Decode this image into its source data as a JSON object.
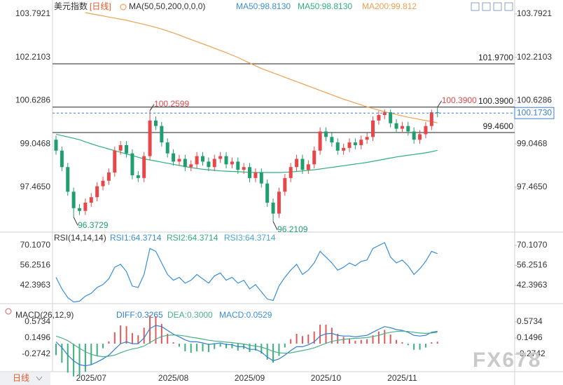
{
  "chart_data": [
    {
      "type": "candlestick",
      "title": "美元指数",
      "period": "[日线]",
      "indicator": "MA(50,50,200,0,0,0)",
      "categories": [
        null,
        null,
        null,
        null,
        null,
        null,
        "2025/07",
        null,
        null,
        null,
        null,
        null,
        null,
        null,
        null,
        null,
        null,
        null,
        null,
        null,
        "2025/08",
        null,
        null,
        null,
        null,
        null,
        null,
        null,
        null,
        null,
        null,
        null,
        null,
        "2025/09",
        null,
        null,
        null,
        null,
        null,
        null,
        null,
        null,
        null,
        null,
        null,
        null,
        "2025/10",
        null,
        null,
        null,
        null,
        null,
        null,
        null,
        null,
        null,
        null,
        null,
        null,
        "2025/11",
        null,
        null,
        null,
        null,
        null,
        null
      ],
      "open": [
        99.2,
        98.8,
        98.2,
        97.3,
        96.7,
        96.6,
        96.9,
        97.1,
        97.5,
        97.7,
        98.0,
        98.8,
        99.0,
        98.7,
        97.9,
        97.8,
        98.6,
        99.9,
        99.7,
        99.1,
        98.7,
        98.4,
        98.5,
        98.2,
        98.3,
        98.6,
        98.4,
        98.2,
        98.5,
        98.6,
        98.3,
        98.4,
        98.1,
        98.2,
        97.8,
        98.0,
        97.6,
        96.9,
        96.5,
        97.3,
        97.8,
        98.2,
        98.5,
        98.1,
        98.3,
        98.8,
        99.5,
        99.3,
        99.1,
        98.8,
        98.9,
        99.1,
        99.0,
        99.2,
        99.3,
        99.9,
        100.1,
        100.2,
        99.8,
        99.6,
        99.7,
        99.5,
        99.2,
        99.4,
        99.7,
        100.2
      ],
      "high": [
        99.35,
        98.95,
        98.35,
        97.45,
        96.85,
        97.05,
        97.25,
        97.65,
        97.85,
        98.15,
        98.95,
        99.15,
        99.15,
        98.85,
        98.05,
        98.75,
        100.2599,
        100.05,
        99.85,
        99.25,
        98.85,
        98.65,
        98.65,
        98.45,
        98.75,
        98.75,
        98.55,
        98.65,
        98.75,
        98.75,
        98.55,
        98.55,
        98.35,
        98.35,
        98.15,
        98.15,
        97.75,
        97.05,
        97.45,
        97.95,
        98.35,
        98.65,
        98.65,
        98.45,
        98.95,
        99.65,
        99.65,
        99.45,
        99.25,
        99.05,
        99.25,
        99.25,
        99.35,
        99.45,
        100.05,
        100.25,
        100.3,
        100.3,
        99.95,
        99.85,
        99.85,
        99.65,
        99.55,
        99.85,
        100.3,
        100.39
      ],
      "low": [
        98.65,
        98.05,
        97.15,
        96.3729,
        96.45,
        96.45,
        96.75,
        96.95,
        97.35,
        97.55,
        97.85,
        98.65,
        98.55,
        97.75,
        97.65,
        97.65,
        98.45,
        99.55,
        98.95,
        98.55,
        98.25,
        98.25,
        98.05,
        98.05,
        98.15,
        98.25,
        98.05,
        98.05,
        98.35,
        98.15,
        98.15,
        97.95,
        97.95,
        97.65,
        97.65,
        97.45,
        96.75,
        96.2109,
        96.35,
        97.15,
        97.65,
        98.05,
        97.95,
        97.95,
        98.15,
        98.65,
        99.15,
        98.95,
        98.65,
        98.65,
        98.75,
        98.85,
        98.85,
        99.05,
        99.15,
        99.75,
        99.95,
        99.65,
        99.45,
        99.45,
        99.35,
        99.05,
        99.05,
        99.25,
        99.55,
        100.02
      ],
      "close": [
        98.8,
        98.2,
        97.3,
        96.7,
        96.6,
        96.9,
        97.1,
        97.5,
        97.7,
        98.0,
        98.8,
        99.0,
        98.7,
        97.9,
        97.8,
        98.6,
        99.9,
        99.7,
        99.1,
        98.7,
        98.4,
        98.5,
        98.2,
        98.3,
        98.6,
        98.4,
        98.2,
        98.5,
        98.6,
        98.3,
        98.4,
        98.1,
        98.2,
        97.8,
        98.0,
        97.6,
        96.9,
        96.5,
        97.3,
        97.8,
        98.2,
        98.5,
        98.1,
        98.3,
        98.8,
        99.5,
        99.3,
        99.1,
        98.8,
        98.9,
        99.1,
        99.0,
        99.2,
        99.3,
        99.9,
        100.1,
        100.2,
        99.8,
        99.6,
        99.7,
        99.5,
        99.2,
        99.4,
        99.7,
        100.2,
        100.173
      ],
      "up_color": "#e8474a",
      "down_color": "#1f9e6e",
      "series": [
        {
          "name": "MA50:98.8130",
          "color": "#3b8fd6"
        },
        {
          "name": "MA50:98.8130",
          "color": "#2fb07a",
          "values": [
            99.4,
            99.35,
            99.3,
            99.25,
            99.2,
            99.12,
            99.05,
            98.98,
            98.92,
            98.86,
            98.8,
            98.74,
            98.68,
            98.62,
            98.56,
            98.5,
            98.46,
            98.42,
            98.38,
            98.34,
            98.3,
            98.26,
            98.22,
            98.18,
            98.15,
            98.12,
            98.1,
            98.08,
            98.06,
            98.05,
            98.04,
            98.03,
            98.02,
            98.01,
            98.0,
            98.0,
            98.0,
            98.0,
            98.0,
            98.01,
            98.02,
            98.04,
            98.06,
            98.08,
            98.1,
            98.13,
            98.16,
            98.19,
            98.22,
            98.25,
            98.28,
            98.31,
            98.34,
            98.37,
            98.41,
            98.45,
            98.49,
            98.53,
            98.57,
            98.6,
            98.63,
            98.66,
            98.69,
            98.72,
            98.76,
            98.813
          ]
        },
        {
          "name": "MA200:99.812",
          "color": "#f0a050",
          "values": [
            null,
            null,
            null,
            null,
            null,
            103.84,
            103.8,
            103.76,
            103.72,
            103.68,
            103.64,
            103.6,
            103.56,
            103.51,
            103.46,
            103.41,
            103.36,
            103.3,
            103.24,
            103.17,
            103.1,
            103.02,
            102.94,
            102.86,
            102.78,
            102.7,
            102.62,
            102.54,
            102.46,
            102.38,
            102.29,
            102.2,
            102.1,
            102.0,
            101.9,
            101.8,
            101.72,
            101.64,
            101.56,
            101.48,
            101.4,
            101.32,
            101.24,
            101.16,
            101.08,
            101.0,
            100.92,
            100.84,
            100.76,
            100.68,
            100.61,
            100.54,
            100.47,
            100.4,
            100.34,
            100.28,
            100.22,
            100.17,
            100.12,
            100.07,
            100.02,
            99.98,
            99.94,
            99.9,
            99.86,
            99.812
          ]
        }
      ],
      "ylim": [
        95.85,
        104.25
      ],
      "yticks": [
        103.7921,
        102.2103,
        100.6286,
        99.0468,
        {
          "value": 97.465,
          "label": "97.4650"
        }
      ],
      "hlines": [
        {
          "value": 101.97,
          "label": "101.9700"
        },
        {
          "value": 100.39,
          "label": "100.3900"
        },
        {
          "value": 99.46,
          "label": "99.4600"
        }
      ],
      "last": {
        "value": 100.173,
        "label": "100.1730",
        "color": "#3a7fd0"
      },
      "annotations": [
        {
          "value": 96.3729,
          "label": "96.3729"
        },
        {
          "value": 100.2599,
          "label": "100.2599"
        },
        {
          "value": 96.2109,
          "label": "96.2109"
        },
        {
          "value": 100.39,
          "label": "100.3900"
        }
      ]
    },
    {
      "type": "line",
      "title": "RSI(14,14,14)",
      "series": [
        {
          "name": "RSI1:64.3714",
          "color": "#3a8fd8",
          "values": [
            48,
            40,
            34,
            31,
            31.5,
            35,
            37,
            41,
            43,
            47,
            55,
            57,
            52,
            42,
            41,
            50,
            68,
            66,
            58,
            50,
            46,
            48,
            44,
            46,
            50,
            47,
            44,
            49,
            51,
            46,
            48,
            44,
            46,
            40,
            43,
            38,
            33,
            32,
            42,
            48,
            53,
            57,
            50,
            53,
            58,
            66,
            62,
            58,
            53,
            55,
            58,
            56,
            59,
            60,
            68,
            70,
            72,
            62,
            58,
            60,
            56,
            50,
            54,
            59,
            66,
            64.3714
          ]
        },
        {
          "name": "RSI2:64.3714",
          "color": "#2fb07a"
        },
        {
          "name": "RSI3:64.3714",
          "color": "#46a7d8"
        }
      ],
      "ylim": [
        30.3,
        78.8
      ],
      "yticks": [
        {
          "value": 70.107,
          "label": "70.1070"
        },
        56.2516,
        42.3963
      ]
    },
    {
      "type": "macd",
      "title": "MACD(26,12,9)",
      "series": [
        {
          "name": "DIFF:0.3265",
          "color": "#2f7fd0",
          "values": [
            0.05,
            -0.1,
            -0.3,
            -0.45,
            -0.55,
            -0.58,
            -0.55,
            -0.48,
            -0.4,
            -0.3,
            -0.15,
            0.0,
            0.05,
            0.0,
            0.0,
            0.15,
            0.4,
            0.48,
            0.45,
            0.35,
            0.25,
            0.18,
            0.1,
            0.05,
            0.05,
            0.02,
            -0.02,
            0.0,
            0.02,
            -0.02,
            -0.03,
            -0.08,
            -0.08,
            -0.15,
            -0.15,
            -0.22,
            -0.35,
            -0.45,
            -0.4,
            -0.3,
            -0.18,
            -0.08,
            -0.08,
            -0.03,
            0.05,
            0.2,
            0.26,
            0.27,
            0.22,
            0.2,
            0.2,
            0.18,
            0.2,
            0.22,
            0.3,
            0.38,
            0.45,
            0.42,
            0.37,
            0.35,
            0.3,
            0.22,
            0.2,
            0.22,
            0.3,
            0.3265
          ]
        },
        {
          "name": "DEA:0.3000",
          "color": "#49b08c",
          "values": [
            0.2,
            0.15,
            0.08,
            -0.02,
            -0.12,
            -0.21,
            -0.28,
            -0.32,
            -0.34,
            -0.33,
            -0.3,
            -0.24,
            -0.18,
            -0.14,
            -0.11,
            -0.06,
            0.03,
            0.12,
            0.19,
            0.22,
            0.23,
            0.22,
            0.2,
            0.17,
            0.15,
            0.12,
            0.09,
            0.07,
            0.06,
            0.04,
            0.03,
            0.01,
            -0.01,
            -0.04,
            -0.06,
            -0.09,
            -0.14,
            -0.2,
            -0.24,
            -0.25,
            -0.24,
            -0.21,
            -0.18,
            -0.15,
            -0.11,
            -0.05,
            0.01,
            0.06,
            0.09,
            0.11,
            0.13,
            0.14,
            0.15,
            0.16,
            0.19,
            0.22,
            0.27,
            0.3,
            0.32,
            0.33,
            0.32,
            0.3,
            0.28,
            0.27,
            0.28,
            0.3
          ]
        },
        {
          "name": "MACD:0.0529",
          "color": "#3a8fd8",
          "style": "histogram",
          "up_color": "#e05a5a",
          "down_color": "#3cb07a",
          "values": [
            -0.3,
            -0.5,
            -0.76,
            -0.86,
            -0.86,
            -0.74,
            -0.54,
            -0.32,
            -0.12,
            0.06,
            0.3,
            0.48,
            0.46,
            0.28,
            0.22,
            0.42,
            0.74,
            0.72,
            0.52,
            0.26,
            0.04,
            -0.08,
            -0.2,
            -0.24,
            -0.2,
            -0.2,
            -0.22,
            -0.14,
            -0.08,
            -0.12,
            -0.12,
            -0.18,
            -0.14,
            -0.22,
            -0.18,
            -0.26,
            -0.42,
            -0.5,
            -0.32,
            -0.1,
            0.12,
            0.26,
            0.2,
            0.24,
            0.32,
            0.5,
            0.5,
            0.42,
            0.26,
            0.18,
            0.14,
            0.08,
            0.1,
            0.12,
            0.22,
            0.32,
            0.36,
            0.24,
            0.1,
            0.04,
            -0.04,
            -0.16,
            -0.16,
            -0.1,
            0.04,
            0.0529
          ]
        }
      ],
      "ylim": [
        -0.735,
        1.015
      ],
      "yticks": [
        0.5734,
        0.1496,
        -0.2742
      ]
    }
  ],
  "footer": {
    "period": "日线",
    "watermark": "FX678"
  }
}
